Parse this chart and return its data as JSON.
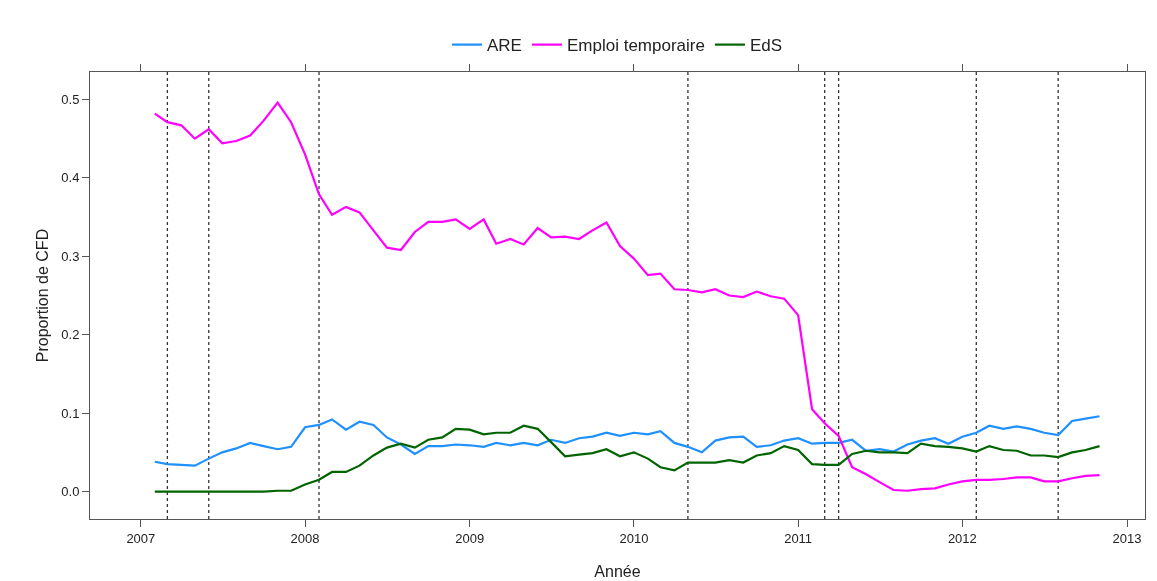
{
  "chart_data": {
    "type": "line",
    "xlabel": "Année",
    "ylabel": "Proportion de CFD",
    "legend": "top",
    "grid": false,
    "line_style": "solid",
    "marker": "none",
    "x": [
      "2007-02",
      "2007-03",
      "2007-04",
      "2007-05",
      "2007-06",
      "2007-07",
      "2007-08",
      "2007-09",
      "2007-10",
      "2007-11",
      "2007-12",
      "2008-01",
      "2008-02",
      "2008-03",
      "2008-04",
      "2008-05",
      "2008-06",
      "2008-07",
      "2008-08",
      "2008-09",
      "2008-10",
      "2008-11",
      "2008-12",
      "2009-01",
      "2009-02",
      "2009-03",
      "2009-04",
      "2009-05",
      "2009-06",
      "2009-07",
      "2009-08",
      "2009-09",
      "2009-10",
      "2009-11",
      "2009-12",
      "2010-01",
      "2010-02",
      "2010-03",
      "2010-04",
      "2010-05",
      "2010-06",
      "2010-07",
      "2010-08",
      "2010-09",
      "2010-10",
      "2010-11",
      "2010-12",
      "2011-01",
      "2011-02",
      "2011-03",
      "2011-04",
      "2011-05",
      "2011-06",
      "2011-07",
      "2011-08",
      "2011-09",
      "2011-10",
      "2011-11",
      "2011-12",
      "2012-01",
      "2012-02",
      "2012-03",
      "2012-04",
      "2012-05",
      "2012-06",
      "2012-07",
      "2012-08",
      "2012-09",
      "2012-10",
      "2012-11"
    ],
    "series": [
      {
        "name": "ARE",
        "color": "#1e90ff",
        "values": [
          0.038,
          0.035,
          0.034,
          0.033,
          0.042,
          0.05,
          0.055,
          0.062,
          0.058,
          0.054,
          0.057,
          0.082,
          0.085,
          0.092,
          0.079,
          0.089,
          0.085,
          0.069,
          0.06,
          0.048,
          0.058,
          0.058,
          0.06,
          0.059,
          0.057,
          0.062,
          0.059,
          0.062,
          0.059,
          0.066,
          0.062,
          0.068,
          0.07,
          0.075,
          0.071,
          0.075,
          0.073,
          0.077,
          0.062,
          0.057,
          0.05,
          0.065,
          0.069,
          0.07,
          0.057,
          0.059,
          0.065,
          0.068,
          0.061,
          0.062,
          0.062,
          0.066,
          0.052,
          0.054,
          0.051,
          0.06,
          0.065,
          0.068,
          0.061,
          0.07,
          0.075,
          0.084,
          0.08,
          0.083,
          0.08,
          0.075,
          0.072,
          0.09,
          0.093,
          0.096
        ]
      },
      {
        "name": "Emploi temporaire",
        "color": "#ff00ff",
        "values": [
          0.482,
          0.471,
          0.467,
          0.45,
          0.462,
          0.444,
          0.447,
          0.454,
          0.473,
          0.496,
          0.471,
          0.43,
          0.379,
          0.353,
          0.363,
          0.356,
          0.333,
          0.311,
          0.308,
          0.331,
          0.344,
          0.344,
          0.347,
          0.335,
          0.347,
          0.316,
          0.322,
          0.315,
          0.336,
          0.324,
          0.325,
          0.322,
          0.333,
          0.343,
          0.313,
          0.297,
          0.276,
          0.278,
          0.258,
          0.257,
          0.254,
          0.258,
          0.25,
          0.248,
          0.255,
          0.249,
          0.246,
          0.225,
          0.105,
          0.087,
          0.071,
          0.031,
          0.022,
          0.012,
          0.002,
          0.001,
          0.003,
          0.004,
          0.009,
          0.013,
          0.015,
          0.015,
          0.016,
          0.018,
          0.018,
          0.013,
          0.013,
          0.017,
          0.02,
          0.021
        ]
      },
      {
        "name": "EdS",
        "color": "#006400",
        "values": [
          0,
          0,
          0,
          0,
          0,
          0,
          0,
          0,
          0,
          0.001,
          0.001,
          0.009,
          0.015,
          0.025,
          0.025,
          0.033,
          0.046,
          0.056,
          0.061,
          0.056,
          0.066,
          0.069,
          0.08,
          0.079,
          0.073,
          0.075,
          0.075,
          0.084,
          0.08,
          0.063,
          0.045,
          0.047,
          0.049,
          0.054,
          0.045,
          0.05,
          0.042,
          0.031,
          0.027,
          0.037,
          0.037,
          0.037,
          0.04,
          0.037,
          0.046,
          0.049,
          0.058,
          0.053,
          0.035,
          0.034,
          0.034,
          0.048,
          0.052,
          0.05,
          0.05,
          0.049,
          0.061,
          0.058,
          0.057,
          0.055,
          0.051,
          0.058,
          0.053,
          0.052,
          0.046,
          0.046,
          0.044,
          0.05,
          0.053,
          0.058
        ]
      }
    ],
    "xlim": [
      "2006-09-10",
      "2013-02-10"
    ],
    "xticks": [
      {
        "value": "2007-01-01",
        "label": "2007"
      },
      {
        "value": "2008-01-01",
        "label": "2008"
      },
      {
        "value": "2009-01-01",
        "label": "2009"
      },
      {
        "value": "2010-01-01",
        "label": "2010"
      },
      {
        "value": "2011-01-01",
        "label": "2011"
      },
      {
        "value": "2012-01-01",
        "label": "2012"
      },
      {
        "value": "2013-01-01",
        "label": "2013"
      }
    ],
    "ylim": [
      -0.035,
      0.535
    ],
    "yticks": [
      {
        "value": 0,
        "label": "0.0"
      },
      0.1,
      0.2,
      0.3,
      0.4,
      0.5
    ],
    "ref_lines": [
      {
        "axis": "x",
        "value": "2007-03-01",
        "color": "#333333",
        "line_style": "dotted"
      },
      {
        "axis": "x",
        "value": "2007-06-01",
        "color": "#333333",
        "line_style": "dotted"
      },
      {
        "axis": "x",
        "value": "2008-02-01",
        "color": "#333333",
        "line_style": "dotted"
      },
      {
        "axis": "x",
        "value": "2010-05-01",
        "color": "#333333",
        "line_style": "dotted"
      },
      {
        "axis": "x",
        "value": "2011-03-01",
        "color": "#333333",
        "line_style": "dotted"
      },
      {
        "axis": "x",
        "value": "2011-04-01",
        "color": "#333333",
        "line_style": "dotted"
      },
      {
        "axis": "x",
        "value": "2012-02-01",
        "color": "#333333",
        "line_style": "dotted"
      },
      {
        "axis": "x",
        "value": "2012-08-01",
        "color": "#333333",
        "line_style": "dotted"
      }
    ]
  }
}
